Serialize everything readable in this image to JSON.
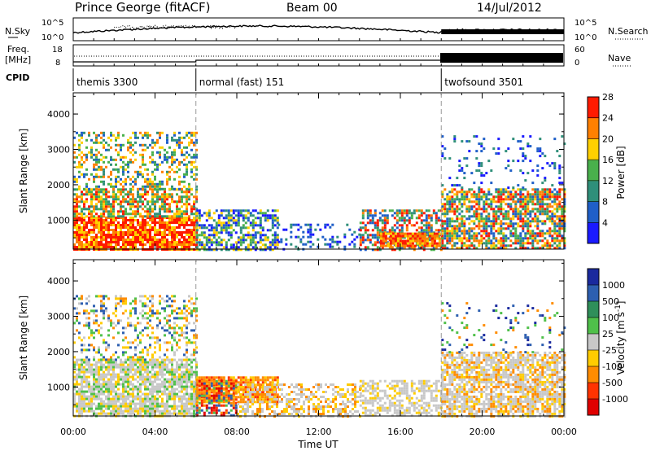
{
  "header": {
    "station": "Prince George (fitACF)",
    "beam": "Beam 00",
    "date": "14/Jul/2012"
  },
  "sky_panel": {
    "left_label": "N.Sky",
    "left_ticks": [
      "10^5",
      "10^0"
    ],
    "right_ticks": [
      "10^5",
      "10^0"
    ],
    "right_label": "N.Search"
  },
  "freq_panel": {
    "left_label_1": "Freq.",
    "left_label_2": "[MHz]",
    "left_ticks": [
      "18",
      "8"
    ],
    "right_ticks": [
      "60",
      "0"
    ],
    "right_label": "Nave"
  },
  "cpid": {
    "label": "CPID",
    "segments": [
      {
        "name": "themis 3300",
        "start_h": 0,
        "end_h": 6
      },
      {
        "name": "normal (fast) 151",
        "start_h": 6,
        "end_h": 18
      },
      {
        "name": "twofsound 3501",
        "start_h": 18,
        "end_h": 24
      }
    ]
  },
  "chart_data": [
    {
      "type": "heatmap",
      "panel": "power",
      "ylabel": "Slant Range [km]",
      "xlabel": "",
      "ylim": [
        180,
        4600
      ],
      "xlim": [
        0,
        24
      ],
      "y_ticks": [
        "1000",
        "2000",
        "3000",
        "4000"
      ],
      "y_tick_values": [
        1000,
        2000,
        3000,
        4000
      ],
      "colorbar": {
        "label": "Power [dB]",
        "ticks": [
          "4",
          "8",
          "12",
          "16",
          "20",
          "24",
          "28"
        ],
        "colors": [
          "#1a1aff",
          "#1f5fc8",
          "#2f8f7a",
          "#49b04c",
          "#ffd000",
          "#ff8000",
          "#ff1a00"
        ]
      }
    },
    {
      "type": "heatmap",
      "panel": "velocity",
      "ylabel": "Slant Range [km]",
      "xlabel": "Time UT",
      "ylim": [
        180,
        4600
      ],
      "xlim": [
        0,
        24
      ],
      "y_ticks": [
        "1000",
        "2000",
        "3000",
        "4000"
      ],
      "y_tick_values": [
        1000,
        2000,
        3000,
        4000
      ],
      "x_ticks": [
        "00:00",
        "04:00",
        "08:00",
        "12:00",
        "16:00",
        "20:00",
        "00:00"
      ],
      "x_tick_values": [
        0,
        4,
        8,
        12,
        16,
        20,
        24
      ],
      "colorbar": {
        "label": "Velocity [m s-1]",
        "ticks": [
          "1000",
          "500",
          "100",
          "25",
          "-25",
          "-100",
          "-500",
          "-1000"
        ],
        "colors": [
          "#1a2a9e",
          "#2d5fb0",
          "#2f8f5a",
          "#4fc04a",
          "#c8c8c8",
          "#ffcc00",
          "#ff8c00",
          "#ff3300",
          "#e00000"
        ]
      }
    }
  ]
}
